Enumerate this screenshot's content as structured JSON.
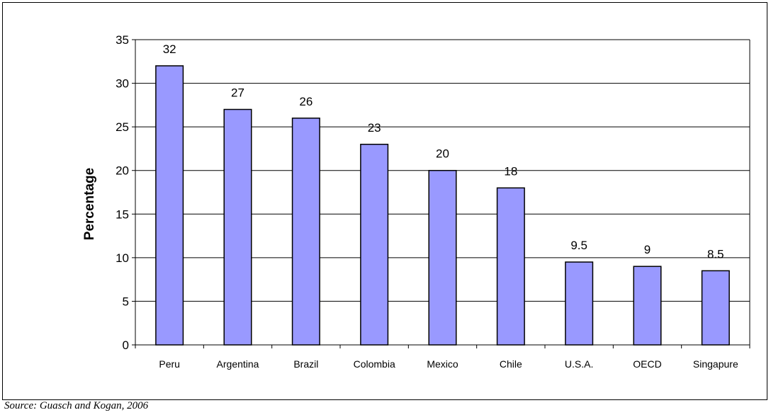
{
  "chart_data": {
    "type": "bar",
    "categories": [
      "Peru",
      "Argentina",
      "Brazil",
      "Colombia",
      "Mexico",
      "Chile",
      "U.S.A.",
      "OECD",
      "Singapure"
    ],
    "values": [
      32,
      27,
      26,
      23,
      20,
      18,
      9.5,
      9,
      8.5
    ],
    "data_labels": [
      "32",
      "27",
      "26",
      "23",
      "20",
      "18",
      "9.5",
      "9",
      "8.5"
    ],
    "title": "",
    "xlabel": "",
    "ylabel": "Percentage",
    "ylim": [
      0,
      35
    ],
    "yticks": [
      0,
      5,
      10,
      15,
      20,
      25,
      30,
      35
    ],
    "grid": true,
    "legend": "none",
    "bar_color": "#9999ff",
    "bar_edge_color": "#000000"
  },
  "source_note": "Source: Guasch and Kogan, 2006"
}
